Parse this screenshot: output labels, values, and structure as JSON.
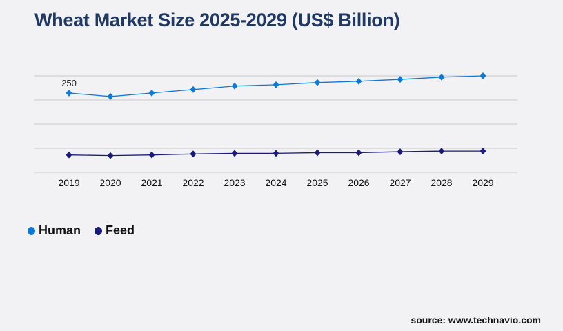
{
  "title": "Wheat Market Size 2025-2029 (US$ Billion)",
  "source": "source: www.technavio.com",
  "chart_data": {
    "type": "line",
    "title": "Wheat Market Size 2025-2029 (US$ Billion)",
    "categories": [
      "2019",
      "2020",
      "2021",
      "2022",
      "2023",
      "2024",
      "2025",
      "2026",
      "2027",
      "2028",
      "2029"
    ],
    "series": [
      {
        "name": "Human",
        "color": "#0f7ad6",
        "values": [
          250,
          239,
          250,
          261,
          272,
          276,
          283,
          287,
          293,
          300,
          304
        ]
      },
      {
        "name": "Feed",
        "color": "#1a1a7a",
        "values": [
          55,
          53,
          55,
          58,
          60,
          60,
          62,
          62,
          65,
          67,
          67
        ]
      }
    ],
    "annotations": [
      {
        "series": "Human",
        "category": "2019",
        "text": "250"
      }
    ],
    "ylim": [
      0,
      304
    ],
    "grid": true,
    "legend": "bottom-left",
    "xlabel": "",
    "ylabel": ""
  }
}
